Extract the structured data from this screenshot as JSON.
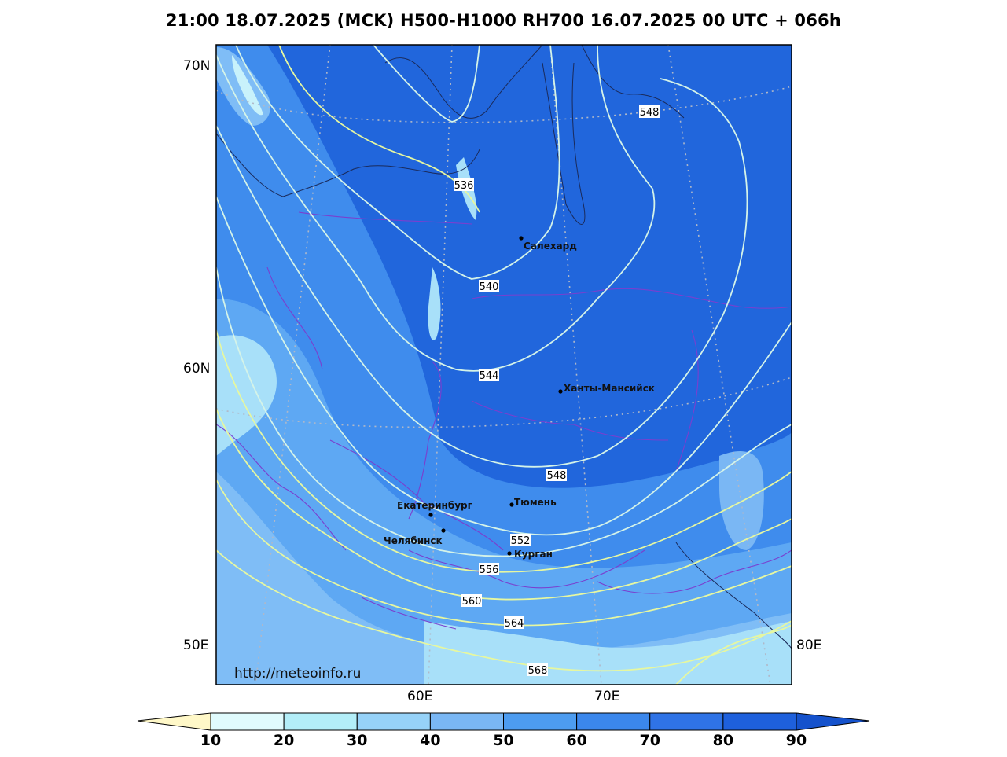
{
  "title": "21:00 18.07.2025 (MCK) H500-H1000 RH700 16.07.2025 00 UTC + 066h",
  "watermark": "http://meteoinfo.ru",
  "lat_labels": [
    "70N",
    "60N",
    "50E"
  ],
  "lon_labels": [
    "60E",
    "70E",
    "80E"
  ],
  "contours": [
    "536",
    "540",
    "544",
    "548",
    "548",
    "552",
    "556",
    "560",
    "564",
    "568"
  ],
  "cities": [
    "Салехард",
    "Ханты-Мансийск",
    "Екатеринбург",
    "Тюмень",
    "Челябинск",
    "Курган"
  ],
  "colorbar": {
    "ticks": [
      "10",
      "20",
      "30",
      "40",
      "50",
      "60",
      "70",
      "80",
      "90"
    ],
    "colors": [
      "#fff8c8",
      "#e0fbfd",
      "#b3eef8",
      "#96d2f8",
      "#7ab7f4",
      "#4d9cf0",
      "#3b87ec",
      "#2f73e6",
      "#1e60dc",
      "#1552cc"
    ]
  }
}
